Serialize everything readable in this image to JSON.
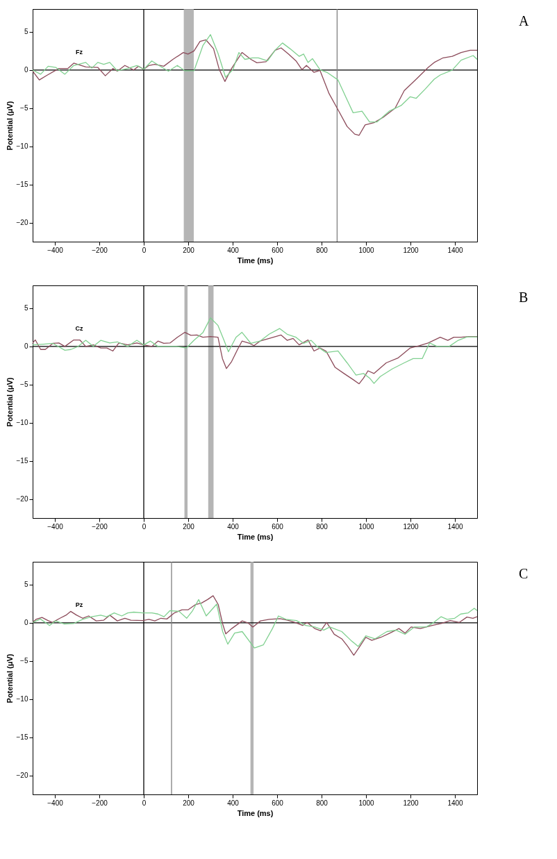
{
  "chart_data": [
    {
      "type": "line",
      "xlabel": "Time (ms)",
      "ylabel": "Potential (μV)",
      "xlim": [
        -500,
        1500
      ],
      "ylim": [
        -22.5,
        8
      ],
      "xticks": [
        -400,
        -200,
        0,
        200,
        400,
        600,
        800,
        1000,
        1200,
        1400
      ],
      "yticks": [
        -20,
        -15,
        -10,
        -5,
        0,
        5
      ],
      "bands": [
        {
          "axis": "x",
          "from": 180,
          "to": 225,
          "color": "#a8a8a8"
        }
      ],
      "ref_lines": [
        {
          "axis": "x",
          "value": 0,
          "color": "#000000"
        },
        {
          "axis": "y",
          "value": 0,
          "color": "#000000"
        },
        {
          "axis": "x",
          "value": 870,
          "color": "#808080"
        }
      ],
      "annotations": [
        "A",
        "Fz"
      ],
      "series": [
        {
          "color": "#8c4b5a",
          "x": [
            -500,
            -470,
            -436,
            -382,
            -342,
            -315,
            -261,
            -207,
            -173,
            -139,
            -119,
            -85,
            -45,
            -24,
            0,
            23,
            50,
            90,
            131,
            178,
            199,
            226,
            253,
            280,
            314,
            340,
            365,
            395,
            442,
            482,
            509,
            550,
            591,
            618,
            651,
            685,
            712,
            732,
            766,
            793,
            834,
            874,
            915,
            949,
            969,
            996,
            1036,
            1077,
            1131,
            1172,
            1226,
            1280,
            1307,
            1347,
            1388,
            1428,
            1469,
            1500
          ],
          "values": [
            -0.15,
            -1.3,
            -0.7,
            0.2,
            0.2,
            0.9,
            0.4,
            0.35,
            -0.75,
            0.2,
            -0.15,
            0.6,
            0,
            0.5,
            0.1,
            0.6,
            0.75,
            0.5,
            1.4,
            2.3,
            2.1,
            2.5,
            3.75,
            3.95,
            2.8,
            0.05,
            -1.5,
            0.2,
            2.3,
            1.4,
            0.95,
            1.1,
            2.6,
            2.9,
            2.1,
            1.2,
            0.05,
            0.6,
            -0.3,
            -0.05,
            -3.1,
            -5.2,
            -7.4,
            -8.4,
            -8.55,
            -7.2,
            -6.9,
            -6.2,
            -5,
            -2.7,
            -1.2,
            0.35,
            1,
            1.6,
            1.8,
            2.3,
            2.6,
            2.6
          ]
        },
        {
          "color": "#80d090",
          "x": [
            -500,
            -464,
            -430,
            -396,
            -355,
            -315,
            -261,
            -234,
            -207,
            -180,
            -153,
            -119,
            -72,
            -31,
            0,
            36,
            77,
            111,
            151,
            185,
            226,
            266,
            300,
            334,
            368,
            401,
            428,
            455,
            489,
            516,
            557,
            591,
            624,
            658,
            699,
            719,
            739,
            759,
            793,
            827,
            874,
            915,
            942,
            982,
            1016,
            1050,
            1104,
            1158,
            1199,
            1226,
            1266,
            1307,
            1334,
            1388,
            1428,
            1482,
            1500
          ],
          "values": [
            0,
            -0.55,
            0.5,
            0.35,
            -0.55,
            0.6,
            1,
            0.25,
            1,
            0.75,
            1,
            -0.1,
            0.2,
            0.6,
            0.1,
            1.2,
            0.45,
            -0.15,
            0.6,
            -0.1,
            -0.1,
            3.2,
            4.65,
            2.2,
            -0.95,
            0.05,
            2.3,
            1.4,
            1.6,
            1.6,
            1.2,
            2.6,
            3.55,
            2.8,
            1.8,
            2.1,
            1,
            1.5,
            0.05,
            -0.35,
            -1.3,
            -3.9,
            -5.6,
            -5.4,
            -6.8,
            -6.8,
            -5.4,
            -4.65,
            -3.5,
            -3.7,
            -2.5,
            -1.2,
            -0.65,
            0,
            1.3,
            1.9,
            1.4
          ]
        }
      ]
    },
    {
      "type": "line",
      "xlabel": "Time (ms)",
      "ylabel": "Potential (μV)",
      "xlim": [
        -500,
        1500
      ],
      "ylim": [
        -22.5,
        8
      ],
      "xticks": [
        -400,
        -200,
        0,
        200,
        400,
        600,
        800,
        1000,
        1200,
        1400
      ],
      "yticks": [
        -20,
        -15,
        -10,
        -5,
        0,
        5
      ],
      "bands": [
        {
          "axis": "x",
          "from": 183,
          "to": 197,
          "color": "#a8a8a8"
        },
        {
          "axis": "x",
          "from": 290,
          "to": 314,
          "color": "#a8a8a8"
        }
      ],
      "ref_lines": [
        {
          "axis": "x",
          "value": 0,
          "color": "#000000"
        },
        {
          "axis": "y",
          "value": 0,
          "color": "#000000"
        }
      ],
      "annotations": [
        "B",
        "Cz"
      ],
      "series": [
        {
          "color": "#8c4b5a",
          "x": [
            -500,
            -488,
            -464,
            -443,
            -409,
            -382,
            -355,
            -315,
            -288,
            -261,
            -227,
            -193,
            -166,
            -139,
            -112,
            -72,
            -31,
            0,
            36,
            64,
            90,
            118,
            151,
            185,
            212,
            239,
            266,
            300,
            334,
            354,
            372,
            395,
            422,
            442,
            476,
            496,
            523,
            564,
            618,
            645,
            672,
            699,
            739,
            766,
            793,
            820,
            861,
            901,
            942,
            969,
            989,
            1009,
            1036,
            1091,
            1145,
            1199,
            1239,
            1280,
            1334,
            1368,
            1395,
            1428,
            1462,
            1500
          ],
          "values": [
            0.45,
            0.85,
            -0.4,
            -0.4,
            0.4,
            0.45,
            0,
            0.85,
            0.85,
            0,
            0.2,
            -0.2,
            -0.2,
            -0.6,
            0.45,
            0.2,
            0.45,
            0.2,
            0,
            0.7,
            0.4,
            0.45,
            1.2,
            1.85,
            1.45,
            1.5,
            1.2,
            1.3,
            1.2,
            -1.6,
            -2.9,
            -2,
            -0.4,
            0.7,
            0.4,
            0.1,
            0.7,
            1.05,
            1.5,
            0.8,
            1.05,
            0.2,
            0.85,
            -0.6,
            -0.2,
            -0.6,
            -2.75,
            -3.55,
            -4.35,
            -4.9,
            -4.15,
            -3.2,
            -3.55,
            -2.15,
            -1.5,
            -0.2,
            0.1,
            0.45,
            1.2,
            0.8,
            1.2,
            1.2,
            1.3,
            1.3
          ]
        },
        {
          "color": "#80d090",
          "x": [
            -500,
            -450,
            -409,
            -355,
            -328,
            -295,
            -261,
            -227,
            -193,
            -153,
            -119,
            -72,
            -31,
            0,
            30,
            64,
            145,
            192,
            226,
            266,
            300,
            334,
            361,
            381,
            415,
            442,
            482,
            523,
            564,
            611,
            645,
            685,
            719,
            753,
            780,
            820,
            874,
            915,
            955,
            989,
            1016,
            1036,
            1064,
            1118,
            1172,
            1212,
            1253,
            1286,
            1320,
            1374,
            1415,
            1455,
            1500
          ],
          "values": [
            0.2,
            0.3,
            0.4,
            -0.5,
            -0.4,
            0,
            0.8,
            0,
            0.8,
            0.45,
            0.6,
            0,
            0.8,
            0.2,
            0.7,
            0,
            0,
            -0.2,
            0.8,
            1.8,
            3.75,
            2.75,
            0.8,
            -0.7,
            1.2,
            1.85,
            0.4,
            0.7,
            1.6,
            2.35,
            1.6,
            1.2,
            0.4,
            0.8,
            0,
            -0.8,
            -0.6,
            -2.15,
            -3.75,
            -3.55,
            -4.15,
            -4.85,
            -3.95,
            -2.95,
            -2.15,
            -1.6,
            -1.6,
            0.45,
            0,
            0,
            0.8,
            1.25,
            1.25
          ]
        }
      ]
    },
    {
      "type": "line",
      "xlabel": "Time (ms)",
      "ylabel": "Potential (μV)",
      "xlim": [
        -500,
        1500
      ],
      "ylim": [
        -22.5,
        8
      ],
      "xticks": [
        -400,
        -200,
        0,
        200,
        400,
        600,
        800,
        1000,
        1200,
        1400
      ],
      "yticks": [
        -20,
        -15,
        -10,
        -5,
        0,
        5
      ],
      "bands": [
        {
          "axis": "x",
          "from": 480,
          "to": 494,
          "color": "#a8a8a8"
        }
      ],
      "ref_lines": [
        {
          "axis": "x",
          "value": 0,
          "color": "#000000"
        },
        {
          "axis": "y",
          "value": 0,
          "color": "#000000"
        },
        {
          "axis": "x",
          "value": 125,
          "color": "#808080"
        }
      ],
      "annotations": [
        "C",
        "Pz"
      ],
      "series": [
        {
          "color": "#8c4b5a",
          "x": [
            -499,
            -485,
            -458,
            -431,
            -411,
            -377,
            -350,
            -329,
            -302,
            -275,
            -248,
            -214,
            -180,
            -153,
            -119,
            -85,
            -58,
            -4,
            23,
            50,
            77,
            104,
            138,
            172,
            199,
            233,
            260,
            287,
            312,
            335,
            355,
            369,
            396,
            443,
            471,
            491,
            525,
            565,
            613,
            647,
            681,
            715,
            735,
            769,
            796,
            823,
            857,
            891,
            918,
            945,
            972,
            999,
            1026,
            1067,
            1108,
            1148,
            1176,
            1203,
            1244,
            1298,
            1338,
            1379,
            1420,
            1454,
            1481,
            1500
          ],
          "values": [
            0.1,
            0.45,
            0.7,
            0.3,
            0.05,
            0.6,
            1,
            1.5,
            1,
            0.6,
            0.9,
            0.25,
            0.35,
            1,
            0.25,
            0.6,
            0.35,
            0.3,
            0.45,
            0.25,
            0.6,
            0.5,
            1.3,
            1.7,
            1.7,
            2.4,
            2.6,
            3.05,
            3.55,
            2.4,
            -0.15,
            -1.45,
            -0.75,
            0.25,
            -0.05,
            -0.55,
            0.25,
            0.45,
            0.55,
            0.35,
            0.05,
            -0.35,
            0.05,
            -0.75,
            -1.05,
            0.05,
            -1.5,
            -2.1,
            -3.1,
            -4.25,
            -3.1,
            -1.9,
            -2.3,
            -1.9,
            -1.35,
            -0.75,
            -1.35,
            -0.55,
            -0.75,
            -0.35,
            -0.1,
            0.3,
            0.05,
            0.75,
            0.6,
            0.8
          ]
        },
        {
          "color": "#80d090",
          "x": [
            -499,
            -465,
            -424,
            -397,
            -357,
            -316,
            -275,
            -235,
            -194,
            -167,
            -133,
            -99,
            -72,
            -45,
            -4,
            37,
            64,
            91,
            118,
            159,
            193,
            220,
            247,
            281,
            328,
            355,
            378,
            409,
            443,
            498,
            538,
            579,
            606,
            640,
            687,
            728,
            769,
            810,
            837,
            891,
            932,
            965,
            999,
            1040,
            1094,
            1135,
            1176,
            1217,
            1271,
            1305,
            1338,
            1365,
            1399,
            1426,
            1460,
            1487,
            1500
          ],
          "values": [
            0.05,
            0.5,
            -0.35,
            0.25,
            -0.15,
            -0.1,
            0.45,
            0.8,
            1,
            0.8,
            1.3,
            0.9,
            1.3,
            1.4,
            1.3,
            1.3,
            1.15,
            0.8,
            1.6,
            1.5,
            0.6,
            1.6,
            3.05,
            0.9,
            2.45,
            -1.15,
            -2.8,
            -1.35,
            -1.15,
            -3.3,
            -2.9,
            -0.75,
            0.9,
            0.45,
            0.3,
            -0.35,
            -0.55,
            -0.95,
            -0.55,
            -1.15,
            -2.3,
            -3.1,
            -1.7,
            -2.1,
            -1.15,
            -0.95,
            -1.5,
            -0.55,
            -0.55,
            0.05,
            0.8,
            0.45,
            0.6,
            1.15,
            1.3,
            1.9,
            1.6
          ]
        }
      ]
    }
  ]
}
